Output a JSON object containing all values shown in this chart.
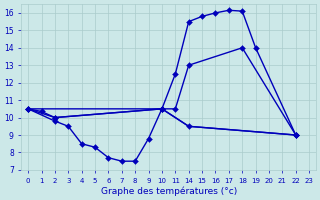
{
  "background_color": "#cce8e8",
  "grid_color": "#aacccc",
  "line_color": "#0000bb",
  "xlabel": "Graphe des températures (°c)",
  "hours": [
    0,
    1,
    2,
    3,
    4,
    5,
    6,
    7,
    8,
    9,
    10,
    11,
    14,
    15,
    16,
    17,
    18,
    19,
    20,
    21,
    22,
    23
  ],
  "ylim": [
    7,
    16.5
  ],
  "yticks": [
    7,
    8,
    9,
    10,
    11,
    12,
    13,
    14,
    15,
    16
  ],
  "line1_hours": [
    0,
    1,
    2,
    10,
    11,
    14,
    15,
    16,
    17,
    18,
    19,
    22
  ],
  "line1_y": [
    10.5,
    10.35,
    10.0,
    10.5,
    12.5,
    15.5,
    15.8,
    16.0,
    16.15,
    16.1,
    14.0,
    9.0
  ],
  "line2_hours": [
    0,
    2,
    10,
    11,
    14,
    18,
    22
  ],
  "line2_y": [
    10.5,
    10.0,
    10.5,
    10.5,
    13.0,
    14.0,
    9.0
  ],
  "line3_hours": [
    0,
    2,
    3,
    4,
    5,
    6,
    7,
    8,
    9,
    10,
    14,
    22
  ],
  "line3_y": [
    10.5,
    9.8,
    9.5,
    8.5,
    8.3,
    7.7,
    7.5,
    7.5,
    8.8,
    10.5,
    9.5,
    9.0
  ],
  "line4_hours": [
    0,
    10,
    14,
    22
  ],
  "line4_y": [
    10.5,
    10.5,
    9.5,
    9.0
  ],
  "markersize": 3,
  "linewidth": 1.0
}
